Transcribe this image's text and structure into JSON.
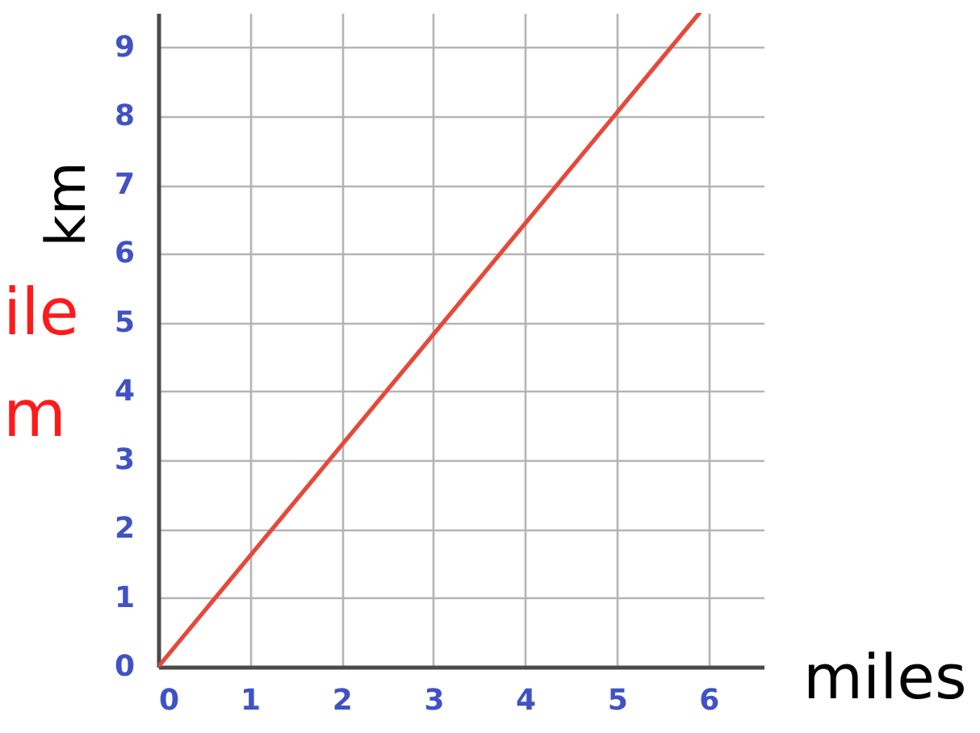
{
  "chart_data": {
    "type": "line",
    "xlabel": "miles",
    "ylabel": "km",
    "annotations": [
      "ile",
      "m"
    ],
    "x": [
      0,
      5.9
    ],
    "series": [
      {
        "color": "#e5493b",
        "values": [
          0,
          9.5
        ]
      }
    ],
    "xlim": [
      0,
      6.6
    ],
    "ylim": [
      0,
      9.5
    ],
    "xticks": [
      0,
      1,
      2,
      3,
      4,
      5,
      6
    ],
    "yticks": [
      0,
      1,
      2,
      3,
      4,
      5,
      6,
      7,
      8,
      9
    ],
    "grid": true
  }
}
